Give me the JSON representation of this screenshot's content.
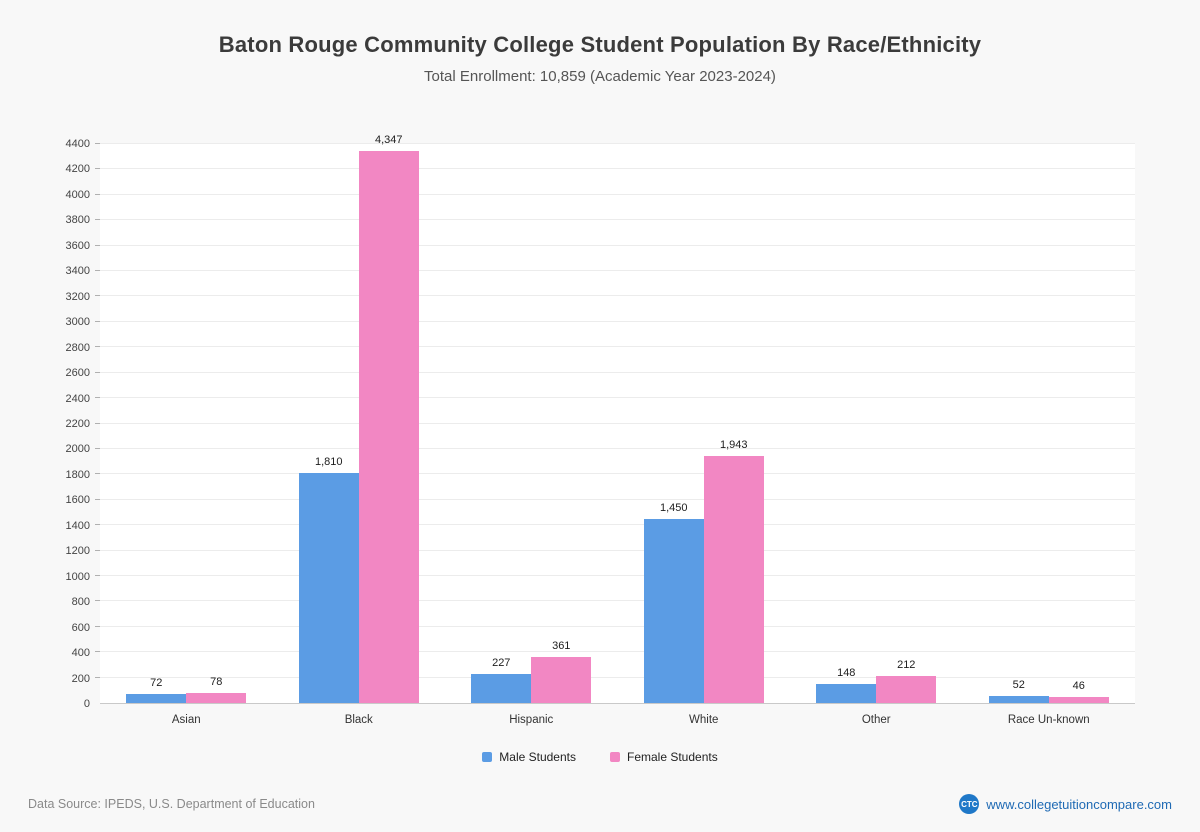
{
  "header": {
    "title": "Baton Rouge Community College Student Population By Race/Ethnicity",
    "subtitle": "Total Enrollment: 10,859 (Academic Year 2023-2024)"
  },
  "chart_data": {
    "type": "bar",
    "title": "Baton Rouge Community College Student Population By Race/Ethnicity",
    "subtitle": "Total Enrollment: 10,859 (Academic Year 2023-2024)",
    "categories": [
      "Asian",
      "Black",
      "Hispanic",
      "White",
      "Other",
      "Race Un-known"
    ],
    "series": [
      {
        "name": "Male Students",
        "color": "#5b9ce4",
        "values": [
          72,
          1810,
          227,
          1450,
          148,
          52
        ]
      },
      {
        "name": "Female Students",
        "color": "#f287c3",
        "values": [
          78,
          4347,
          361,
          1943,
          212,
          46
        ]
      }
    ],
    "xlabel": "",
    "ylabel": "",
    "ylim": [
      0,
      4400
    ],
    "ytick": 200,
    "grid": true,
    "legend_position": "bottom"
  },
  "footer": {
    "source": "Data Source: IPEDS, U.S. Department of Education",
    "logo": "CTC",
    "website": "www.collegetuitioncompare.com"
  }
}
